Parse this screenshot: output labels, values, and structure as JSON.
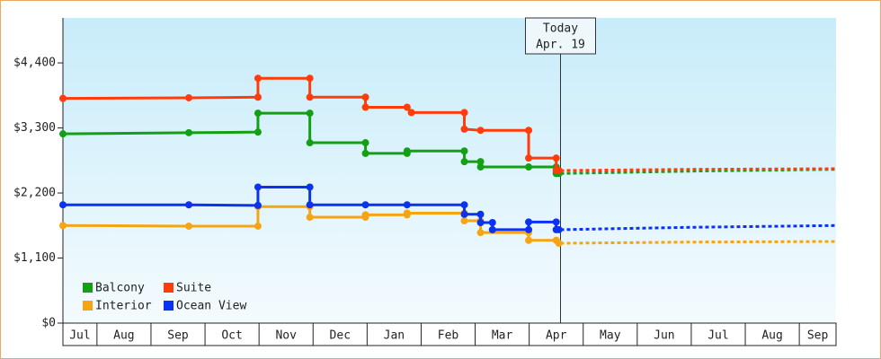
{
  "chart_data": {
    "type": "line",
    "categories": [
      "Jul",
      "Aug",
      "Sep",
      "Oct",
      "Nov",
      "Dec",
      "Jan",
      "Feb",
      "Mar",
      "Apr",
      "May",
      "Jun",
      "Jul",
      "Aug",
      "Sep"
    ],
    "xlim": [
      0.37,
      14.68
    ],
    "ylim": [
      0,
      5160
    ],
    "yticks": [
      {
        "value": 0,
        "label": "$0"
      },
      {
        "value": 1100,
        "label": "$1,100"
      },
      {
        "value": 2200,
        "label": "$2,200"
      },
      {
        "value": 3300,
        "label": "$3,300"
      },
      {
        "value": 4400,
        "label": "$4,400"
      }
    ],
    "today": {
      "x": 9.58,
      "label": "Today",
      "date": "Apr. 19"
    },
    "series": [
      {
        "name": "Balcony",
        "color": "#14a014",
        "x": [
          0.37,
          2.7,
          3.98,
          3.98,
          4.94,
          4.94,
          5.97,
          5.97,
          6.74,
          6.74,
          7.8,
          7.8,
          8.1,
          8.1,
          8.99,
          9.5,
          9.5,
          9.55
        ],
        "values": [
          3200,
          3220,
          3230,
          3550,
          3550,
          3050,
          3050,
          2870,
          2870,
          2910,
          2910,
          2730,
          2730,
          2640,
          2640,
          2640,
          2530,
          2530
        ],
        "forecast_x": [
          9.58,
          12.01,
          14.68
        ],
        "forecast_values": [
          2530,
          2570,
          2600
        ]
      },
      {
        "name": "Suite",
        "color": "#ff3c0a",
        "x": [
          0.37,
          2.7,
          3.98,
          3.98,
          4.94,
          4.94,
          5.97,
          5.97,
          6.74,
          6.82,
          7.8,
          7.8,
          8.1,
          8.99,
          8.99,
          9.5,
          9.5,
          9.55
        ],
        "values": [
          3800,
          3810,
          3820,
          4140,
          4140,
          3820,
          3820,
          3650,
          3650,
          3560,
          3560,
          3280,
          3260,
          3260,
          2790,
          2790,
          2580,
          2580
        ],
        "forecast_x": [
          9.58,
          12.01,
          14.68
        ],
        "forecast_values": [
          2580,
          2600,
          2610
        ]
      },
      {
        "name": "Interior",
        "color": "#f5a514",
        "x": [
          0.37,
          2.7,
          3.98,
          3.98,
          4.94,
          4.94,
          5.97,
          5.97,
          6.74,
          6.74,
          7.8,
          7.8,
          8.1,
          8.1,
          8.99,
          8.99,
          9.5,
          9.55
        ],
        "values": [
          1650,
          1640,
          1640,
          1970,
          1970,
          1790,
          1790,
          1830,
          1830,
          1860,
          1860,
          1730,
          1730,
          1530,
          1530,
          1400,
          1400,
          1350
        ],
        "forecast_x": [
          9.58,
          12.01,
          14.68
        ],
        "forecast_values": [
          1350,
          1370,
          1380
        ]
      },
      {
        "name": "Ocean View",
        "color": "#0a32f0",
        "x": [
          0.37,
          2.7,
          3.98,
          3.98,
          4.94,
          4.94,
          5.97,
          6.74,
          7.8,
          7.8,
          8.1,
          8.1,
          8.32,
          8.32,
          8.99,
          8.99,
          9.5,
          9.5,
          9.55
        ],
        "values": [
          2000,
          2000,
          1990,
          2300,
          2300,
          2000,
          2000,
          2000,
          2000,
          1840,
          1840,
          1700,
          1700,
          1580,
          1580,
          1710,
          1710,
          1580,
          1580
        ],
        "forecast_x": [
          9.58,
          12.01,
          14.68
        ],
        "forecast_values": [
          1580,
          1620,
          1650
        ]
      }
    ]
  }
}
